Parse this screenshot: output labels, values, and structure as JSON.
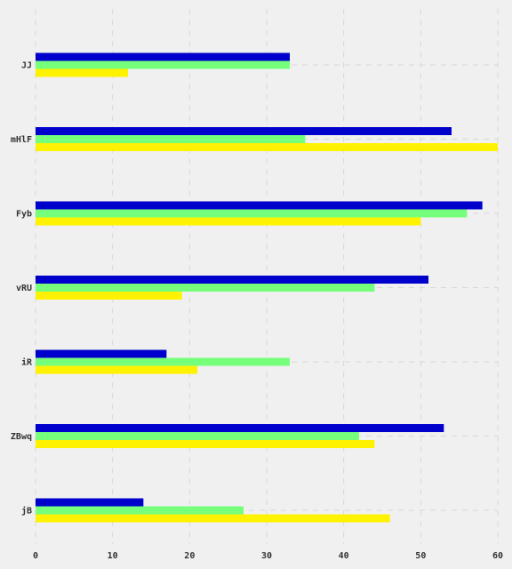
{
  "chart_data": {
    "type": "bar",
    "orientation": "horizontal",
    "categories": [
      "JJ",
      "mHlF",
      "Fyb",
      "vRU",
      "iR",
      "ZBwq",
      "jB"
    ],
    "series": [
      {
        "color": "#0000cd",
        "values": [
          33,
          54,
          58,
          51,
          17,
          53,
          14
        ]
      },
      {
        "color": "#76ff7b",
        "values": [
          33,
          35,
          56,
          44,
          33,
          42,
          27
        ]
      },
      {
        "color": "#fff200",
        "values": [
          12,
          60,
          50,
          19,
          21,
          44,
          46
        ]
      }
    ],
    "x_ticks": [
      0,
      10,
      20,
      30,
      40,
      50,
      60
    ],
    "xlim": [
      0,
      60
    ],
    "grid": true,
    "legend": "none",
    "title": "",
    "xlabel": "",
    "ylabel": ""
  }
}
